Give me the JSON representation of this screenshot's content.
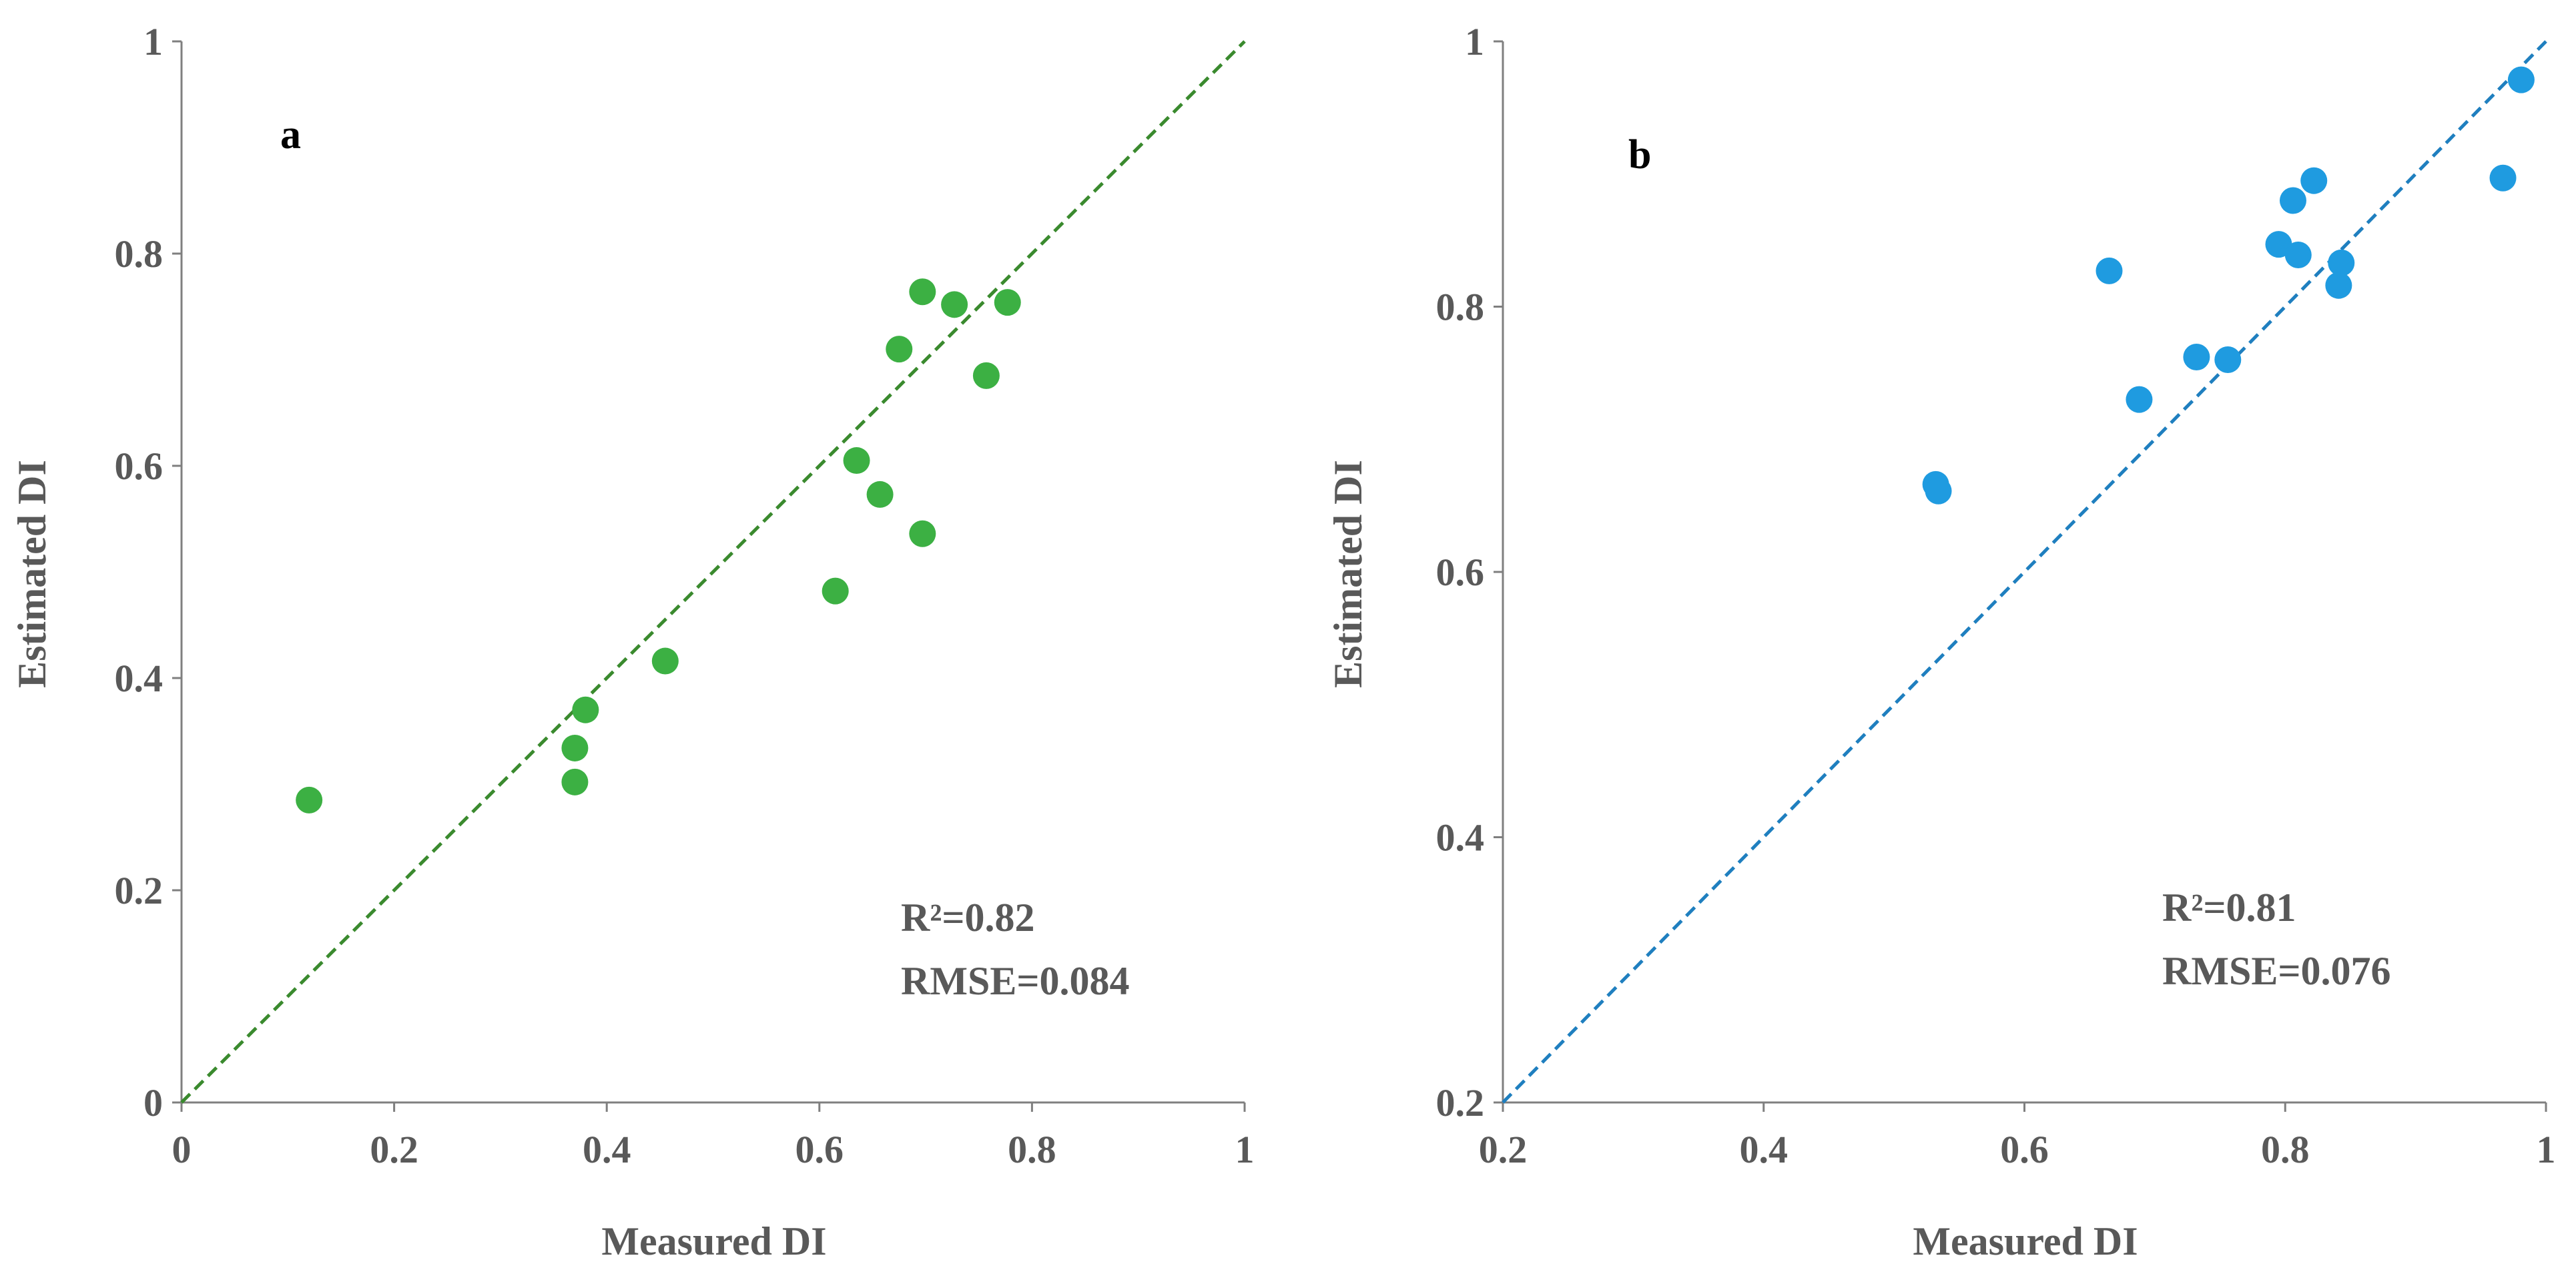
{
  "chart_data": [
    {
      "type": "scatter",
      "panel_label": "a",
      "xlabel": "Measured DI",
      "ylabel": "Estimated DI",
      "xlim": [
        0,
        1
      ],
      "ylim": [
        0,
        1
      ],
      "xticks": [
        "0",
        "0.2",
        "0.4",
        "0.6",
        "0.8",
        "1"
      ],
      "yticks": [
        "0",
        "0.2",
        "0.4",
        "0.6",
        "0.8",
        "1"
      ],
      "xtick_values": [
        0,
        0.2,
        0.4,
        0.6,
        0.8,
        1
      ],
      "ytick_values": [
        0,
        0.2,
        0.4,
        0.6,
        0.8,
        1
      ],
      "color": "#3cb043",
      "line_color": "#3a8a2e",
      "reference_line": [
        [
          0,
          0
        ],
        [
          1,
          1
        ]
      ],
      "stats": [
        "R²=0.82",
        "RMSE=0.084"
      ],
      "points": [
        {
          "x": 0.12,
          "y": 0.285
        },
        {
          "x": 0.37,
          "y": 0.302
        },
        {
          "x": 0.37,
          "y": 0.334
        },
        {
          "x": 0.38,
          "y": 0.37
        },
        {
          "x": 0.455,
          "y": 0.416
        },
        {
          "x": 0.615,
          "y": 0.482
        },
        {
          "x": 0.635,
          "y": 0.605
        },
        {
          "x": 0.657,
          "y": 0.573
        },
        {
          "x": 0.697,
          "y": 0.536
        },
        {
          "x": 0.675,
          "y": 0.71
        },
        {
          "x": 0.697,
          "y": 0.764
        },
        {
          "x": 0.727,
          "y": 0.752
        },
        {
          "x": 0.757,
          "y": 0.685
        },
        {
          "x": 0.777,
          "y": 0.754
        }
      ]
    },
    {
      "type": "scatter",
      "panel_label": "b",
      "xlabel": "Measured DI",
      "ylabel": "Estimated DI",
      "xlim": [
        0.2,
        1
      ],
      "ylim": [
        0.2,
        1
      ],
      "xticks": [
        "0.2",
        "0.4",
        "0.6",
        "0.8",
        "1"
      ],
      "yticks": [
        "0.2",
        "0.4",
        "0.6",
        "0.8",
        "1"
      ],
      "xtick_values": [
        0.2,
        0.4,
        0.6,
        0.8,
        1
      ],
      "ytick_values": [
        0.2,
        0.4,
        0.6,
        0.8,
        1
      ],
      "color": "#1f9be0",
      "line_color": "#1f7fbf",
      "reference_line": [
        [
          0.2,
          0.2
        ],
        [
          1,
          1
        ]
      ],
      "stats": [
        "R²=0.81",
        "RMSE=0.076"
      ],
      "points": [
        {
          "x": 0.532,
          "y": 0.666
        },
        {
          "x": 0.534,
          "y": 0.661
        },
        {
          "x": 0.665,
          "y": 0.827
        },
        {
          "x": 0.688,
          "y": 0.73
        },
        {
          "x": 0.732,
          "y": 0.762
        },
        {
          "x": 0.756,
          "y": 0.76
        },
        {
          "x": 0.795,
          "y": 0.847
        },
        {
          "x": 0.806,
          "y": 0.88
        },
        {
          "x": 0.81,
          "y": 0.839
        },
        {
          "x": 0.822,
          "y": 0.895
        },
        {
          "x": 0.841,
          "y": 0.816
        },
        {
          "x": 0.843,
          "y": 0.833
        },
        {
          "x": 0.967,
          "y": 0.897
        },
        {
          "x": 0.981,
          "y": 0.971
        }
      ]
    }
  ]
}
